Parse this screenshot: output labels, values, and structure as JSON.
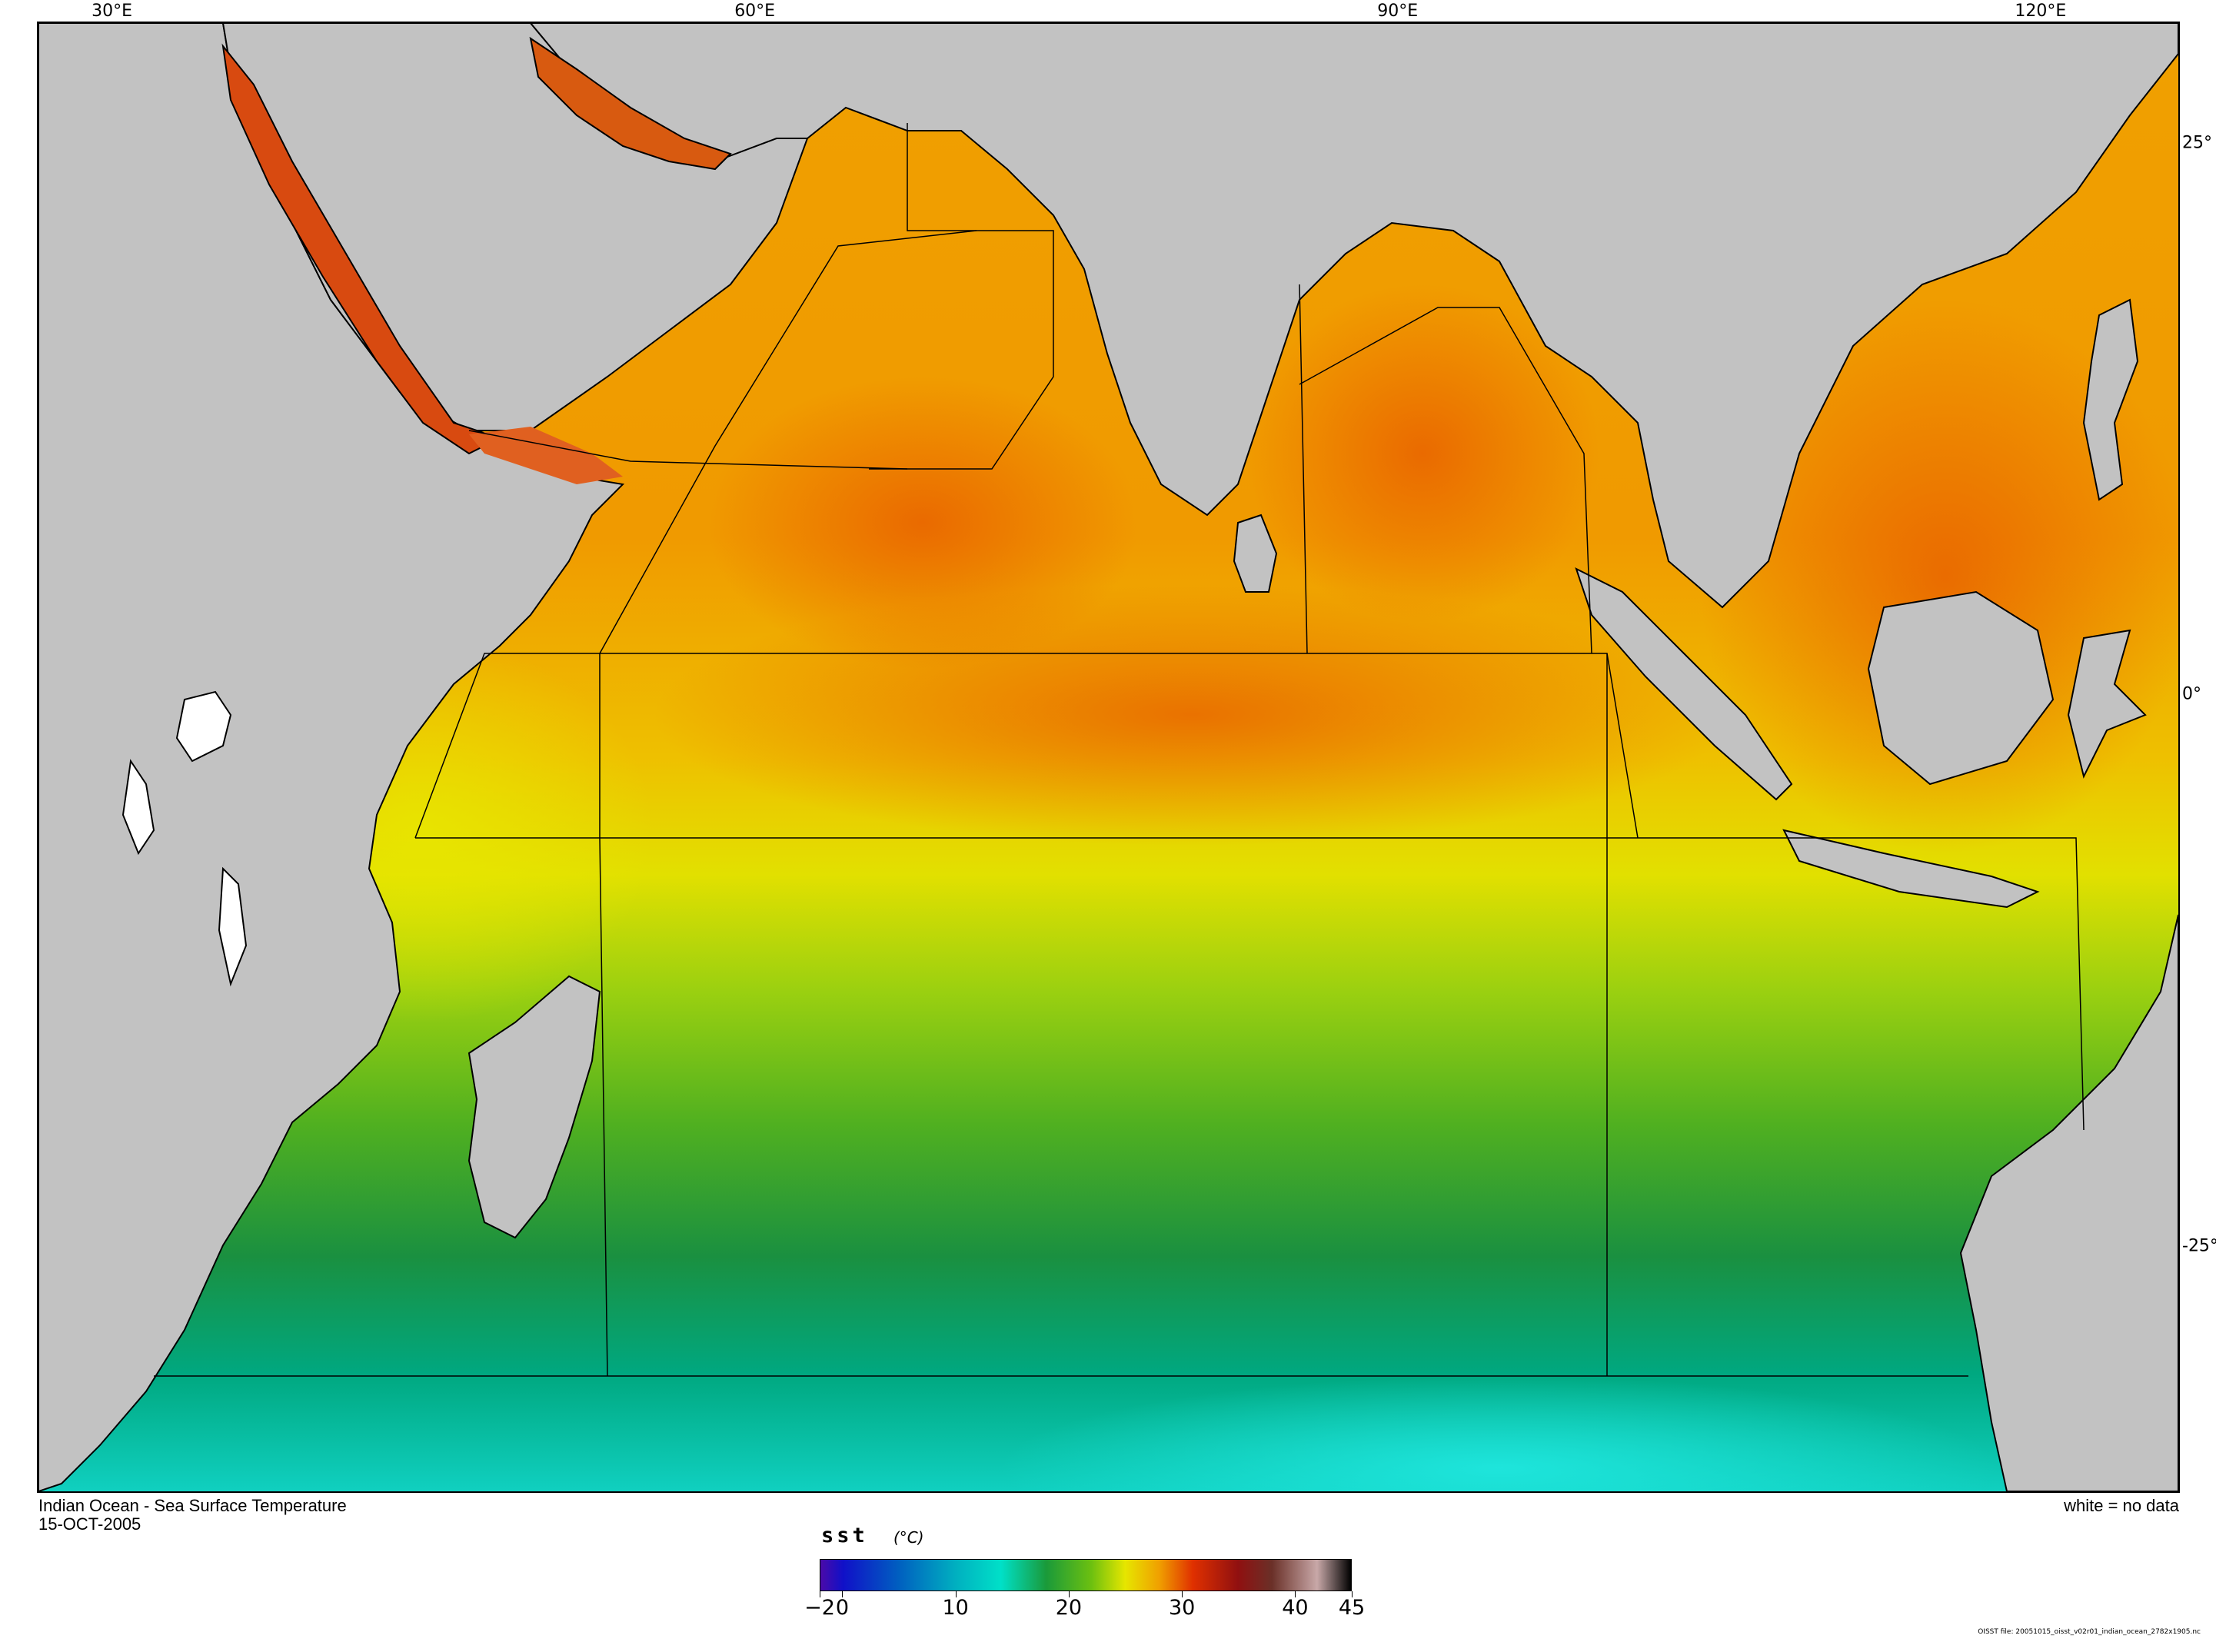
{
  "map": {
    "longitude_labels": [
      {
        "text": "30°E",
        "value": 30
      },
      {
        "text": "60°E",
        "value": 60
      },
      {
        "text": "90°E",
        "value": 90
      },
      {
        "text": "120°E",
        "value": 120
      }
    ],
    "latitude_labels": [
      {
        "text": "25°",
        "value": 25
      },
      {
        "text": "0°",
        "value": 0
      },
      {
        "text": "-25°",
        "value": -25
      }
    ],
    "extent": {
      "lon_min": 26.5,
      "lon_max": 126.5,
      "lat_max": 30.5,
      "lat_min": -36.2
    },
    "colors": {
      "land": "#c2c2c2",
      "no_data": "#ffffff",
      "coastline": "#000000"
    }
  },
  "caption": {
    "title": "Indian Ocean - Sea Surface Temperature",
    "date": "15-OCT-2005",
    "legend_note": "white = no data",
    "file_note": "OISST file: 20051015_oisst_v02r01_indian_ocean_2782x1905.nc"
  },
  "colorbar": {
    "variable": "sst",
    "unit": "(°C)",
    "min": -2,
    "max": 45,
    "tick_labels": [
      {
        "text": "−2",
        "value": -2
      },
      {
        "text": "0",
        "value": 0
      },
      {
        "text": "10",
        "value": 10
      },
      {
        "text": "20",
        "value": 20
      },
      {
        "text": "30",
        "value": 30
      },
      {
        "text": "40",
        "value": 40
      },
      {
        "text": "45",
        "value": 45
      }
    ],
    "color_stops": [
      {
        "value": -2,
        "color": "#4b0aa8"
      },
      {
        "value": 0,
        "color": "#1010c8"
      },
      {
        "value": 5,
        "color": "#0060c0"
      },
      {
        "value": 10,
        "color": "#00b0c0"
      },
      {
        "value": 14,
        "color": "#00e0c8"
      },
      {
        "value": 18,
        "color": "#1a9a3a"
      },
      {
        "value": 22,
        "color": "#6cc010"
      },
      {
        "value": 25,
        "color": "#e6e600"
      },
      {
        "value": 28,
        "color": "#f0a000"
      },
      {
        "value": 31,
        "color": "#e03000"
      },
      {
        "value": 35,
        "color": "#901010"
      },
      {
        "value": 38,
        "color": "#6a3028"
      },
      {
        "value": 42,
        "color": "#c8a8a8"
      },
      {
        "value": 45,
        "color": "#000000"
      }
    ]
  }
}
